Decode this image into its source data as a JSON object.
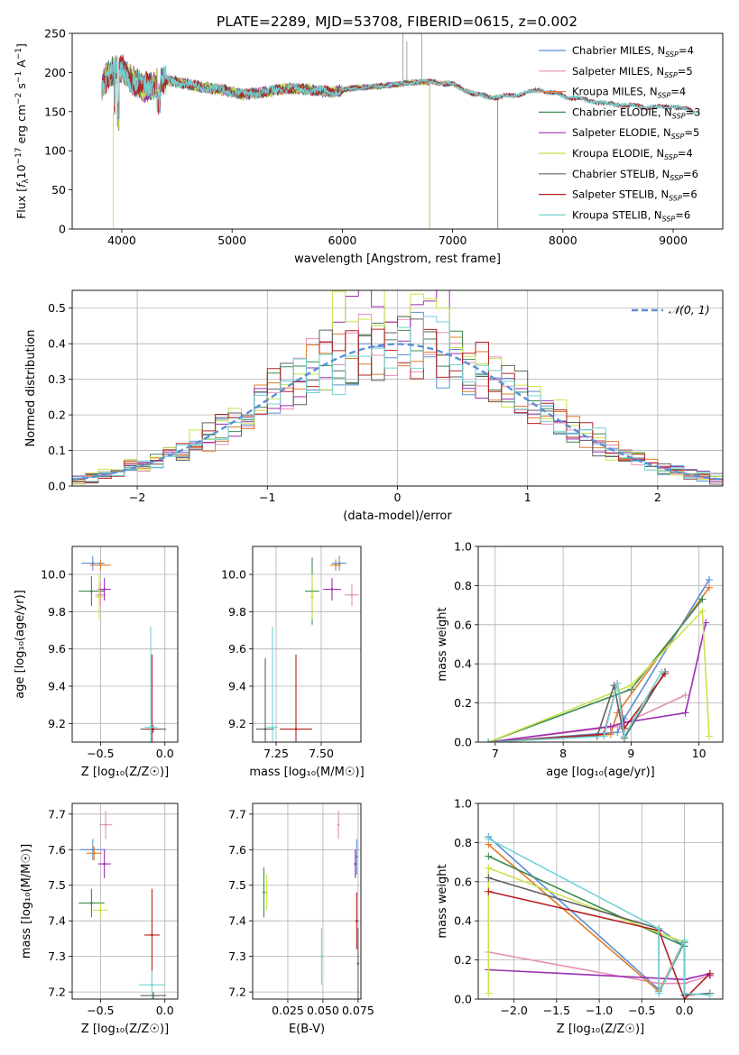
{
  "title": "PLATE=2289, MJD=53708, FIBERID=0615, z=0.002",
  "colors": {
    "chabrier_miles": "#5b8fd6",
    "salpeter_miles": "#e58fb5",
    "kroupa_miles": "#e07b2a",
    "chabrier_elodie": "#3e8a52",
    "salpeter_elodie": "#9b2fb0",
    "kroupa_elodie": "#c8e34a",
    "chabrier_stelib": "#606060",
    "salpeter_stelib": "#b52020",
    "kroupa_stelib": "#72d3d6",
    "normal": "#5b8fd6"
  },
  "chart_data": [
    {
      "id": "spectrum",
      "type": "line",
      "xlabel": "wavelength [Angstrom, rest frame]",
      "ylabel_parts": [
        "Flux [",
        "f",
        "λ",
        "10",
        "−17",
        " erg cm",
        "−2",
        " s",
        "−1",
        " A",
        "−1",
        "]"
      ],
      "xlim": [
        3550,
        9450
      ],
      "ylim": [
        0,
        250
      ],
      "xticks": [
        "4000",
        "5000",
        "6000",
        "7000",
        "8000",
        "9000"
      ],
      "yticks": [
        "0",
        "50",
        "100",
        "150",
        "200",
        "250"
      ],
      "grid": false,
      "legend_position": "top-right",
      "legend": [
        {
          "label": "Chabrier MILES, N",
          "sub": "SSP",
          "value": "=4",
          "color_key": "chabrier_miles"
        },
        {
          "label": "Salpeter MILES, N",
          "sub": "SSP",
          "value": "=5",
          "color_key": "salpeter_miles"
        },
        {
          "label": "Kroupa MILES, N",
          "sub": "SSP",
          "value": "=4",
          "color_key": "kroupa_miles"
        },
        {
          "label": "Chabrier ELODIE, N",
          "sub": "SSP",
          "value": "=3",
          "color_key": "chabrier_elodie"
        },
        {
          "label": "Salpeter ELODIE, N",
          "sub": "SSP",
          "value": "=5",
          "color_key": "salpeter_elodie"
        },
        {
          "label": "Kroupa ELODIE, N",
          "sub": "SSP",
          "value": "=4",
          "color_key": "kroupa_elodie"
        },
        {
          "label": "Chabrier STELIB, N",
          "sub": "SSP",
          "value": "=6",
          "color_key": "chabrier_stelib"
        },
        {
          "label": "Salpeter STELIB, N",
          "sub": "SSP",
          "value": "=6",
          "color_key": "salpeter_stelib"
        },
        {
          "label": "Kroupa STELIB, N",
          "sub": "SSP",
          "value": "=6",
          "color_key": "kroupa_stelib"
        }
      ],
      "continuum": [
        [
          3820,
          185
        ],
        [
          3900,
          200
        ],
        [
          4000,
          205
        ],
        [
          4100,
          190
        ],
        [
          4200,
          180
        ],
        [
          4300,
          185
        ],
        [
          4400,
          190
        ],
        [
          4500,
          188
        ],
        [
          4700,
          182
        ],
        [
          4900,
          178
        ],
        [
          5100,
          172
        ],
        [
          5300,
          175
        ],
        [
          5500,
          180
        ],
        [
          5700,
          178
        ],
        [
          5900,
          175
        ],
        [
          6100,
          180
        ],
        [
          6300,
          182
        ],
        [
          6500,
          185
        ],
        [
          6700,
          188
        ],
        [
          6800,
          188
        ],
        [
          7000,
          185
        ],
        [
          7200,
          172
        ],
        [
          7400,
          168
        ],
        [
          7600,
          172
        ],
        [
          7800,
          178
        ],
        [
          8000,
          170
        ],
        [
          8200,
          165
        ],
        [
          8400,
          160
        ],
        [
          8600,
          158
        ],
        [
          8800,
          155
        ],
        [
          9000,
          157
        ],
        [
          9200,
          150
        ]
      ],
      "model_ends": {
        "miles": 7410,
        "elodie": 6790
      }
    },
    {
      "id": "residuals",
      "type": "line",
      "xlabel": "(data-model)/error",
      "ylabel": "Normed distribution",
      "xlim": [
        -2.5,
        2.5
      ],
      "ylim": [
        0,
        0.55
      ],
      "xticks": [
        -2,
        -1,
        0,
        1,
        2
      ],
      "xtick_labels": [
        "−2",
        "−1",
        "0",
        "1",
        "2"
      ],
      "yticks": [
        0.0,
        0.1,
        0.2,
        0.3,
        0.4,
        0.5
      ],
      "ytick_labels": [
        "0.0",
        "0.1",
        "0.2",
        "0.3",
        "0.4",
        "0.5"
      ],
      "grid": true,
      "legend_position": "top-right",
      "legend": [
        {
          "label": "𝒩(0, 1)",
          "color_key": "normal",
          "dashed": true
        }
      ],
      "bin_edges": [
        -2.5,
        2.5
      ],
      "bin_count": 50,
      "normal": {
        "mean": 0,
        "sigma": 1
      }
    },
    {
      "id": "age_vs_Z",
      "type": "scatter",
      "xlabel": "Z [log₁₀(Z/Z☉)]",
      "ylabel": "age  [log₁₀(age/yr)]",
      "xlim": [
        -0.72,
        0.1
      ],
      "ylim": [
        9.1,
        10.15
      ],
      "xticks": [
        -0.5,
        0.0
      ],
      "xtick_labels": [
        "−0.5",
        "0.0"
      ],
      "yticks": [
        9.2,
        9.4,
        9.6,
        9.8,
        10.0
      ],
      "ytick_labels": [
        "9.2",
        "9.4",
        "9.6",
        "9.8",
        "10.0"
      ],
      "grid": true,
      "points": [
        {
          "key": "chabrier_miles",
          "x": -0.56,
          "y": 10.06,
          "xerr": 0.09,
          "yerr": 0.04
        },
        {
          "key": "kroupa_miles",
          "x": -0.5,
          "y": 10.05,
          "xerr": 0.08,
          "yerr": 0.03
        },
        {
          "key": "salpeter_miles",
          "x": -0.5,
          "y": 9.89,
          "xerr": 0.04,
          "yerr": 0.06
        },
        {
          "key": "chabrier_elodie",
          "x": -0.57,
          "y": 9.91,
          "xerr": 0.1,
          "yerr": 0.08
        },
        {
          "key": "salpeter_elodie",
          "x": -0.47,
          "y": 9.92,
          "xerr": 0.05,
          "yerr": 0.06
        },
        {
          "key": "kroupa_elodie",
          "x": -0.51,
          "y": 9.88,
          "xerr": 0.03,
          "yerr": 0.12
        },
        {
          "key": "chabrier_stelib",
          "x": -0.09,
          "y": 9.17,
          "xerr": 0.1,
          "yerr": 0.02
        },
        {
          "key": "salpeter_stelib",
          "x": -0.1,
          "y": 9.17,
          "xerr": 0.05,
          "yerr": 0.4
        },
        {
          "key": "kroupa_stelib",
          "x": -0.11,
          "y": 9.18,
          "xerr": 0.05,
          "yerr": 0.54
        }
      ]
    },
    {
      "id": "age_vs_mass",
      "type": "scatter",
      "xlabel": "mass [log₁₀(M/M☉)]",
      "ylabel": "",
      "xlim": [
        7.12,
        7.72
      ],
      "ylim": [
        9.1,
        10.15
      ],
      "xticks": [
        7.25,
        7.5
      ],
      "xtick_labels": [
        "7.25",
        "7.50"
      ],
      "yticks": [
        9.2,
        9.4,
        9.6,
        9.8,
        10.0
      ],
      "ytick_labels": [
        "9.2",
        "9.4",
        "9.6",
        "9.8",
        "10.0"
      ],
      "grid": true,
      "points": [
        {
          "key": "chabrier_miles",
          "x": 7.6,
          "y": 10.06,
          "xerr": 0.04,
          "yerr": 0.04
        },
        {
          "key": "kroupa_miles",
          "x": 7.58,
          "y": 10.05,
          "xerr": 0.03,
          "yerr": 0.03
        },
        {
          "key": "salpeter_miles",
          "x": 7.67,
          "y": 9.89,
          "xerr": 0.04,
          "yerr": 0.06
        },
        {
          "key": "chabrier_elodie",
          "x": 7.45,
          "y": 9.91,
          "xerr": 0.04,
          "yerr": 0.18
        },
        {
          "key": "salpeter_elodie",
          "x": 7.56,
          "y": 9.92,
          "xerr": 0.05,
          "yerr": 0.06
        },
        {
          "key": "kroupa_elodie",
          "x": 7.45,
          "y": 9.88,
          "xerr": 0.01,
          "yerr": 0.12
        },
        {
          "key": "chabrier_stelib",
          "x": 7.19,
          "y": 9.17,
          "xerr": 0.05,
          "yerr": 0.38
        },
        {
          "key": "salpeter_stelib",
          "x": 7.36,
          "y": 9.17,
          "xerr": 0.09,
          "yerr": 0.4
        },
        {
          "key": "kroupa_stelib",
          "x": 7.23,
          "y": 9.18,
          "xerr": 0.03,
          "yerr": 0.54
        }
      ]
    },
    {
      "id": "weight_vs_age",
      "type": "line",
      "xlabel": "age  [log₁₀(age/yr)]",
      "ylabel": "mass weight",
      "xlim": [
        6.75,
        10.35
      ],
      "ylim": [
        0,
        1.0
      ],
      "xticks": [
        7,
        8,
        9,
        10
      ],
      "xtick_labels": [
        "7",
        "8",
        "9",
        "10"
      ],
      "yticks": [
        0,
        0.2,
        0.4,
        0.6,
        0.8,
        1.0
      ],
      "ytick_labels": [
        "0.0",
        "0.2",
        "0.4",
        "0.6",
        "0.8",
        "1.0"
      ],
      "grid": true,
      "series": [
        {
          "key": "chabrier_miles",
          "x": [
            6.9,
            8.8,
            8.9,
            10.15
          ],
          "y": [
            0.0,
            0.05,
            0.12,
            0.83
          ]
        },
        {
          "key": "salpeter_miles",
          "x": [
            6.9,
            8.8,
            9.8
          ],
          "y": [
            0.0,
            0.08,
            0.24
          ]
        },
        {
          "key": "kroupa_miles",
          "x": [
            6.9,
            8.7,
            8.8,
            10.15
          ],
          "y": [
            0.0,
            0.04,
            0.15,
            0.79
          ]
        },
        {
          "key": "chabrier_elodie",
          "x": [
            6.9,
            9.0,
            10.05
          ],
          "y": [
            0.0,
            0.27,
            0.73
          ]
        },
        {
          "key": "salpeter_elodie",
          "x": [
            6.9,
            8.7,
            8.9,
            9.8,
            10.1
          ],
          "y": [
            0.0,
            0.08,
            0.1,
            0.15,
            0.61
          ]
        },
        {
          "key": "kroupa_elodie",
          "x": [
            6.9,
            9.0,
            10.05,
            10.15
          ],
          "y": [
            0.0,
            0.29,
            0.67,
            0.03
          ]
        },
        {
          "key": "chabrier_stelib",
          "x": [
            6.9,
            8.5,
            8.75,
            8.9,
            9.5
          ],
          "y": [
            0.0,
            0.03,
            0.29,
            0.02,
            0.36
          ]
        },
        {
          "key": "salpeter_stelib",
          "x": [
            6.9,
            8.6,
            8.8,
            8.9,
            9.5
          ],
          "y": [
            0.0,
            0.04,
            0.3,
            0.07,
            0.35
          ]
        },
        {
          "key": "kroupa_stelib",
          "x": [
            6.9,
            8.6,
            8.8,
            8.9,
            9.45
          ],
          "y": [
            0.0,
            0.03,
            0.3,
            0.03,
            0.36
          ]
        }
      ]
    },
    {
      "id": "mass_vs_Z",
      "type": "scatter",
      "xlabel": "Z [log₁₀(Z/Z☉)]",
      "ylabel": "mass [log₁₀(M/M☉)]",
      "xlim": [
        -0.72,
        0.1
      ],
      "ylim": [
        7.18,
        7.73
      ],
      "xticks": [
        -0.5,
        0.0
      ],
      "xtick_labels": [
        "−0.5",
        "0.0"
      ],
      "yticks": [
        7.2,
        7.3,
        7.4,
        7.5,
        7.6,
        7.7
      ],
      "ytick_labels": [
        "7.2",
        "7.3",
        "7.4",
        "7.5",
        "7.6",
        "7.7"
      ],
      "grid": true,
      "points": [
        {
          "key": "chabrier_miles",
          "x": -0.56,
          "y": 7.6,
          "xerr": 0.1,
          "yerr": 0.03
        },
        {
          "key": "kroupa_miles",
          "x": -0.55,
          "y": 7.59,
          "xerr": 0.06,
          "yerr": 0.02
        },
        {
          "key": "salpeter_miles",
          "x": -0.46,
          "y": 7.67,
          "xerr": 0.05,
          "yerr": 0.04
        },
        {
          "key": "chabrier_elodie",
          "x": -0.57,
          "y": 7.45,
          "xerr": 0.1,
          "yerr": 0.04
        },
        {
          "key": "salpeter_elodie",
          "x": -0.47,
          "y": 7.56,
          "xerr": 0.05,
          "yerr": 0.04
        },
        {
          "key": "kroupa_elodie",
          "x": -0.5,
          "y": 7.43,
          "xerr": 0.06,
          "yerr": 0.02
        },
        {
          "key": "chabrier_stelib",
          "x": -0.09,
          "y": 7.19,
          "xerr": 0.1,
          "yerr": 0.01
        },
        {
          "key": "salpeter_stelib",
          "x": -0.1,
          "y": 7.36,
          "xerr": 0.06,
          "yerr": 0.13
        },
        {
          "key": "kroupa_stelib",
          "x": -0.1,
          "y": 7.22,
          "xerr": 0.1,
          "yerr": 0.04
        }
      ]
    },
    {
      "id": "mass_vs_ebv",
      "type": "scatter",
      "xlabel": "E(B-V)",
      "ylabel": "",
      "xlim": [
        0.0,
        0.077
      ],
      "ylim": [
        7.18,
        7.73
      ],
      "xticks": [
        0.025,
        0.05,
        0.075
      ],
      "xtick_labels": [
        "0.025",
        "0.050",
        "0.075"
      ],
      "yticks": [
        7.2,
        7.3,
        7.4,
        7.5,
        7.6,
        7.7
      ],
      "ytick_labels": [
        "7.2",
        "7.3",
        "7.4",
        "7.5",
        "7.6",
        "7.7"
      ],
      "grid": true,
      "points": [
        {
          "key": "salpeter_miles",
          "x": 0.061,
          "y": 7.67,
          "xerr": 0.0,
          "yerr": 0.04
        },
        {
          "key": "chabrier_elodie",
          "x": 0.008,
          "y": 7.48,
          "xerr": 0.0,
          "yerr": 0.07
        },
        {
          "key": "kroupa_elodie",
          "x": 0.01,
          "y": 7.48,
          "xerr": 0.0,
          "yerr": 0.05
        },
        {
          "key": "salpeter_elodie",
          "x": 0.073,
          "y": 7.56,
          "xerr": 0.0,
          "yerr": 0.04
        },
        {
          "key": "kroupa_stelib",
          "x": 0.049,
          "y": 7.3,
          "xerr": 0.0,
          "yerr": 0.08
        },
        {
          "key": "salpeter_stelib",
          "x": 0.074,
          "y": 7.4,
          "xerr": 0.0,
          "yerr": 0.08
        },
        {
          "key": "chabrier_stelib",
          "x": 0.075,
          "y": 7.28,
          "xerr": 0.0,
          "yerr": 0.1
        },
        {
          "key": "chabrier_miles",
          "x": 0.074,
          "y": 7.58,
          "xerr": 0.0,
          "yerr": 0.05
        }
      ]
    },
    {
      "id": "weight_vs_Z",
      "type": "line",
      "xlabel": "Z [log₁₀(Z/Z☉)]",
      "ylabel": "mass weight",
      "xlim": [
        -2.42,
        0.45
      ],
      "ylim": [
        0,
        1.0
      ],
      "xticks": [
        -2.0,
        -1.5,
        -1.0,
        -0.5,
        0.0
      ],
      "xtick_labels": [
        "−2.0",
        "−1.5",
        "−1.0",
        "−0.5",
        "0.0"
      ],
      "yticks": [
        0,
        0.2,
        0.4,
        0.6,
        0.8,
        1.0
      ],
      "ytick_labels": [
        "0.0",
        "0.2",
        "0.4",
        "0.6",
        "0.8",
        "1.0"
      ],
      "grid": true,
      "series": [
        {
          "key": "chabrier_miles",
          "x": [
            -2.3,
            -0.3,
            -0.3,
            0.0,
            0.0
          ],
          "y": [
            0.83,
            0.05,
            0.36,
            0.27,
            0.0
          ]
        },
        {
          "key": "salpeter_miles",
          "x": [
            -2.3,
            -0.3,
            0.0,
            0.3
          ],
          "y": [
            0.24,
            0.08,
            0.08,
            0.12
          ]
        },
        {
          "key": "kroupa_miles",
          "x": [
            -2.3,
            -0.3,
            0.0,
            0.0
          ],
          "y": [
            0.79,
            0.04,
            0.3,
            0.0
          ]
        },
        {
          "key": "chabrier_elodie",
          "x": [
            -2.3,
            0.0,
            0.0
          ],
          "y": [
            0.73,
            0.27,
            0.0
          ]
        },
        {
          "key": "salpeter_elodie",
          "x": [
            -2.3,
            0.0,
            0.3,
            0.3
          ],
          "y": [
            0.15,
            0.1,
            0.13,
            0.12
          ]
        },
        {
          "key": "kroupa_elodie",
          "x": [
            -2.3,
            -2.3,
            0.0,
            0.0
          ],
          "y": [
            0.03,
            0.67,
            0.29,
            0.0
          ]
        },
        {
          "key": "chabrier_stelib",
          "x": [
            -2.3,
            -0.3,
            -0.3,
            0.0,
            0.0,
            0.3
          ],
          "y": [
            0.62,
            0.36,
            0.03,
            0.29,
            0.02,
            0.03
          ]
        },
        {
          "key": "salpeter_stelib",
          "x": [
            -2.3,
            -0.3,
            0.0,
            0.3
          ],
          "y": [
            0.55,
            0.35,
            0.0,
            0.13
          ]
        },
        {
          "key": "kroupa_stelib",
          "x": [
            -2.3,
            -0.3,
            -0.3,
            0.0,
            0.0,
            0.3
          ],
          "y": [
            0.82,
            0.36,
            0.03,
            0.3,
            0.03,
            0.02
          ]
        }
      ]
    }
  ]
}
